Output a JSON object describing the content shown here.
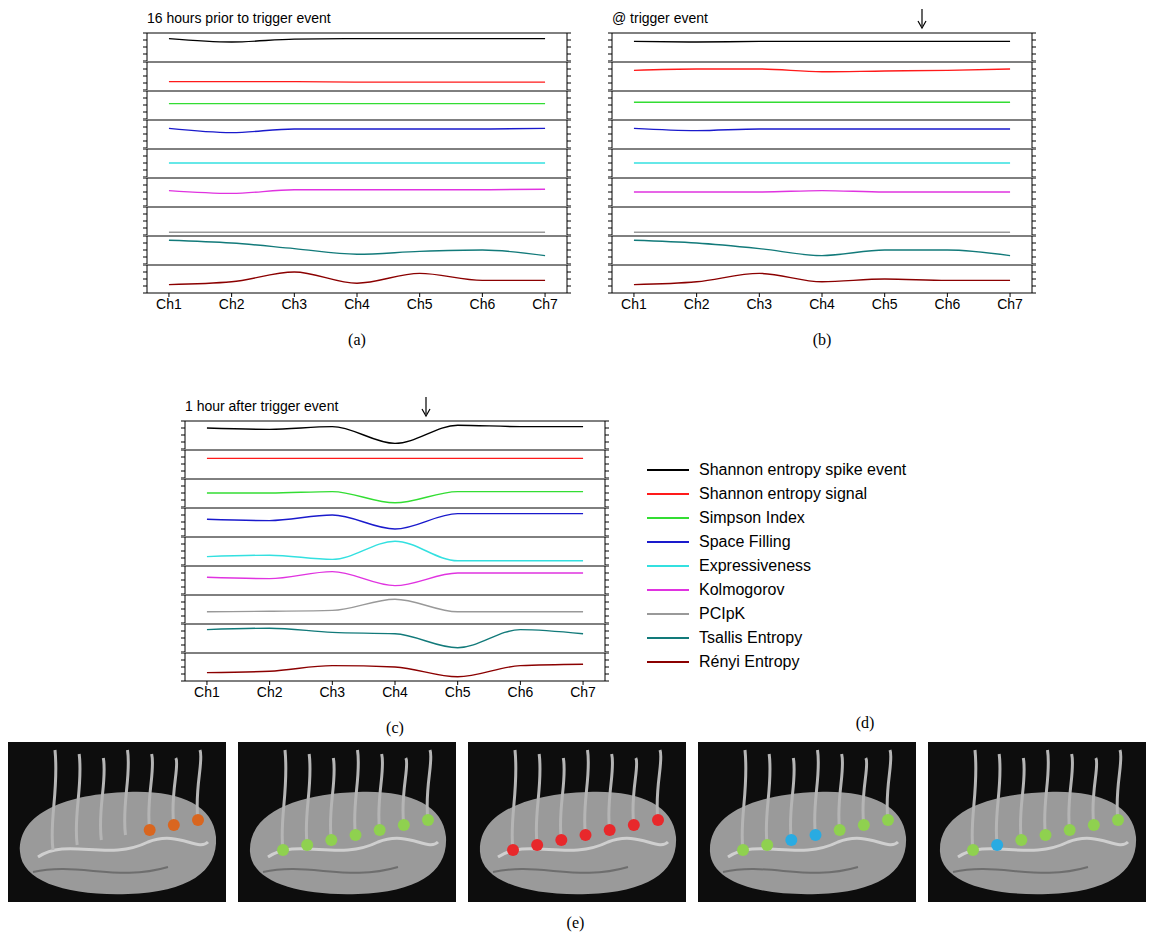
{
  "chart_data": [
    {
      "type": "line",
      "title": "16 hours prior to trigger event",
      "label": "(a)",
      "tick_labels": "x",
      "x": [
        1,
        2,
        3,
        4,
        5,
        6,
        7
      ],
      "xlim": [
        0.65,
        7.35
      ],
      "xticks": [
        {
          "value": 1,
          "label": "Ch1"
        },
        {
          "value": 2,
          "label": "Ch2"
        },
        {
          "value": 3,
          "label": "Ch3"
        },
        {
          "value": 4,
          "label": "Ch4"
        },
        {
          "value": 5,
          "label": "Ch5"
        },
        {
          "value": 6,
          "label": "Ch6"
        },
        {
          "value": 7,
          "label": "Ch7"
        }
      ],
      "ylim": [
        0,
        1
      ],
      "yticks": [
        0,
        0.25,
        0.5,
        0.75,
        1
      ],
      "series": [
        {
          "name": "Shannon entropy spike event",
          "color": "#000000",
          "values": [
            0.8,
            0.68,
            0.78,
            0.8,
            0.8,
            0.8,
            0.8
          ]
        },
        {
          "name": "Shannon entropy signal",
          "color": "#ff1a1a",
          "values": [
            0.3,
            0.3,
            0.3,
            0.28,
            0.28,
            0.28,
            0.28
          ]
        },
        {
          "name": "Simpson Index",
          "color": "#33dd33",
          "values": [
            0.55,
            0.55,
            0.55,
            0.55,
            0.55,
            0.55,
            0.55
          ]
        },
        {
          "name": "Space Filling",
          "color": "#1a1acc",
          "values": [
            0.7,
            0.55,
            0.68,
            0.68,
            0.68,
            0.68,
            0.7
          ]
        },
        {
          "name": "Expressiveness",
          "color": "#33e0e0",
          "values": [
            0.5,
            0.5,
            0.5,
            0.5,
            0.5,
            0.5,
            0.5
          ]
        },
        {
          "name": "Kolmogorov",
          "color": "#e033e0",
          "values": [
            0.55,
            0.45,
            0.58,
            0.58,
            0.58,
            0.58,
            0.6
          ]
        },
        {
          "name": "PCIpK",
          "color": "#999999",
          "values": [
            0.1,
            0.1,
            0.1,
            0.1,
            0.1,
            0.1,
            0.1
          ]
        },
        {
          "name": "Tsallis Entropy",
          "color": "#127a7a",
          "values": [
            0.85,
            0.75,
            0.55,
            0.35,
            0.45,
            0.5,
            0.3
          ]
        },
        {
          "name": "Rényi Entropy",
          "color": "#8b0000",
          "values": [
            0.3,
            0.4,
            0.75,
            0.35,
            0.7,
            0.45,
            0.45
          ]
        }
      ],
      "annotations": []
    },
    {
      "type": "line",
      "title": "@ trigger event",
      "label": "(b)",
      "tick_labels": "x",
      "x": [
        1,
        2,
        3,
        4,
        5,
        6,
        7
      ],
      "xlim": [
        0.65,
        7.35
      ],
      "xticks": [
        {
          "value": 1,
          "label": "Ch1"
        },
        {
          "value": 2,
          "label": "Ch2"
        },
        {
          "value": 3,
          "label": "Ch3"
        },
        {
          "value": 4,
          "label": "Ch4"
        },
        {
          "value": 5,
          "label": "Ch5"
        },
        {
          "value": 6,
          "label": "Ch6"
        },
        {
          "value": 7,
          "label": "Ch7"
        }
      ],
      "ylim": [
        0,
        1
      ],
      "yticks": [
        0,
        0.25,
        0.5,
        0.75,
        1
      ],
      "series": [
        {
          "name": "Shannon entropy spike event",
          "color": "#000000",
          "values": [
            0.7,
            0.68,
            0.7,
            0.7,
            0.7,
            0.7,
            0.7
          ]
        },
        {
          "name": "Shannon entropy signal",
          "color": "#ff1a1a",
          "values": [
            0.7,
            0.75,
            0.75,
            0.65,
            0.68,
            0.7,
            0.75
          ]
        },
        {
          "name": "Simpson Index",
          "color": "#33dd33",
          "values": [
            0.6,
            0.6,
            0.6,
            0.6,
            0.6,
            0.6,
            0.6
          ]
        },
        {
          "name": "Space Filling",
          "color": "#1a1acc",
          "values": [
            0.7,
            0.62,
            0.68,
            0.68,
            0.68,
            0.68,
            0.68
          ]
        },
        {
          "name": "Expressiveness",
          "color": "#33e0e0",
          "values": [
            0.5,
            0.5,
            0.5,
            0.5,
            0.5,
            0.5,
            0.5
          ]
        },
        {
          "name": "Kolmogorov",
          "color": "#e033e0",
          "values": [
            0.5,
            0.5,
            0.5,
            0.55,
            0.5,
            0.5,
            0.5
          ]
        },
        {
          "name": "PCIpK",
          "color": "#999999",
          "values": [
            0.1,
            0.1,
            0.1,
            0.1,
            0.1,
            0.1,
            0.1
          ]
        },
        {
          "name": "Tsallis Entropy",
          "color": "#127a7a",
          "values": [
            0.85,
            0.75,
            0.55,
            0.3,
            0.5,
            0.5,
            0.3
          ]
        },
        {
          "name": "Rényi Entropy",
          "color": "#8b0000",
          "values": [
            0.3,
            0.4,
            0.7,
            0.4,
            0.5,
            0.45,
            0.45
          ]
        }
      ],
      "annotations": [
        {
          "type": "arrow",
          "x": 5.6
        }
      ]
    },
    {
      "type": "line",
      "title": "1 hour after trigger event",
      "label": "(c)",
      "tick_labels": "x",
      "x": [
        1,
        2,
        3,
        4,
        5,
        6,
        7
      ],
      "xlim": [
        0.65,
        7.35
      ],
      "xticks": [
        {
          "value": 1,
          "label": "Ch1"
        },
        {
          "value": 2,
          "label": "Ch2"
        },
        {
          "value": 3,
          "label": "Ch3"
        },
        {
          "value": 4,
          "label": "Ch4"
        },
        {
          "value": 5,
          "label": "Ch5"
        },
        {
          "value": 6,
          "label": "Ch6"
        },
        {
          "value": 7,
          "label": "Ch7"
        }
      ],
      "ylim": [
        0,
        1
      ],
      "yticks": [
        0,
        0.25,
        0.5,
        0.75,
        1
      ],
      "series": [
        {
          "name": "Shannon entropy spike event",
          "color": "#000000",
          "values": [
            0.75,
            0.7,
            0.8,
            0.2,
            0.85,
            0.8,
            0.8
          ]
        },
        {
          "name": "Shannon entropy signal",
          "color": "#ff1a1a",
          "values": [
            0.7,
            0.7,
            0.7,
            0.7,
            0.7,
            0.7,
            0.7
          ]
        },
        {
          "name": "Simpson Index",
          "color": "#33dd33",
          "values": [
            0.5,
            0.5,
            0.55,
            0.15,
            0.55,
            0.55,
            0.55
          ]
        },
        {
          "name": "Space Filling",
          "color": "#1a1acc",
          "values": [
            0.6,
            0.55,
            0.75,
            0.25,
            0.8,
            0.8,
            0.8
          ]
        },
        {
          "name": "Expressiveness",
          "color": "#33e0e0",
          "values": [
            0.3,
            0.35,
            0.2,
            0.85,
            0.15,
            0.15,
            0.15
          ]
        },
        {
          "name": "Kolmogorov",
          "color": "#e033e0",
          "values": [
            0.6,
            0.55,
            0.8,
            0.3,
            0.75,
            0.75,
            0.75
          ]
        },
        {
          "name": "PCIpK",
          "color": "#999999",
          "values": [
            0.4,
            0.42,
            0.45,
            0.85,
            0.4,
            0.4,
            0.4
          ]
        },
        {
          "name": "Tsallis Entropy",
          "color": "#127a7a",
          "values": [
            0.8,
            0.85,
            0.7,
            0.65,
            0.15,
            0.8,
            0.65
          ]
        },
        {
          "name": "Rényi Entropy",
          "color": "#8b0000",
          "values": [
            0.3,
            0.35,
            0.55,
            0.5,
            0.15,
            0.55,
            0.6
          ]
        }
      ],
      "annotations": [
        {
          "type": "arrow",
          "x": 4.5
        }
      ]
    }
  ],
  "legend_panel": {
    "label": "(d)"
  },
  "image_panel": {
    "label": "(e)",
    "images": [
      {
        "electrodes": [
          null,
          null,
          null,
          null,
          "#d9661f",
          "#d9661f",
          "#d9661f"
        ]
      },
      {
        "electrodes": [
          "#8fd14f",
          "#8fd14f",
          "#8fd14f",
          "#8fd14f",
          "#8fd14f",
          "#8fd14f",
          "#8fd14f"
        ]
      },
      {
        "electrodes": [
          "#e8282b",
          "#e8282b",
          "#e8282b",
          "#e8282b",
          "#e8282b",
          "#e8282b",
          "#e8282b"
        ]
      },
      {
        "electrodes": [
          "#8fd14f",
          "#8fd14f",
          "#29abe2",
          "#29abe2",
          "#8fd14f",
          "#8fd14f",
          "#8fd14f"
        ]
      },
      {
        "electrodes": [
          "#8fd14f",
          "#29abe2",
          "#8fd14f",
          "#8fd14f",
          "#8fd14f",
          "#8fd14f",
          "#8fd14f"
        ]
      }
    ]
  }
}
